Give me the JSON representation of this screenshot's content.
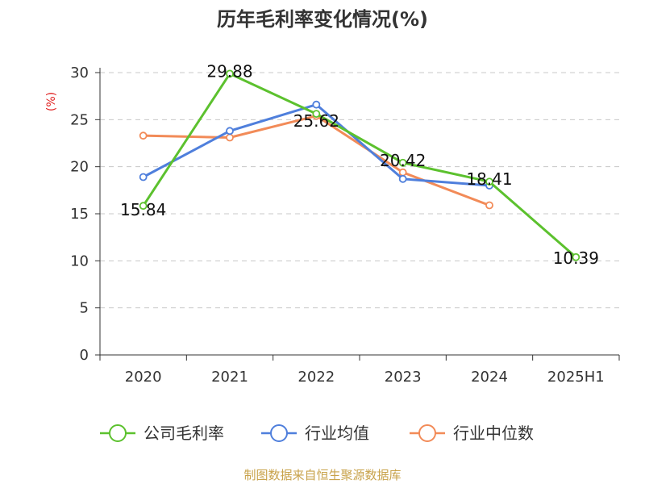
{
  "chart_data": {
    "type": "line",
    "title": "历年毛利率变化情况(%)",
    "ylabel": "(%)",
    "xlabel": "",
    "categories": [
      "2020",
      "2021",
      "2022",
      "2023",
      "2024",
      "2025H1"
    ],
    "ylim": [
      0,
      30
    ],
    "yticks": [
      0,
      5,
      10,
      15,
      20,
      25,
      30
    ],
    "grid": true,
    "legend_position": "bottom",
    "series": [
      {
        "name": "公司毛利率",
        "color": "#5cc12e",
        "values": [
          15.84,
          29.88,
          25.62,
          20.42,
          18.41,
          10.39
        ],
        "labels": [
          "15.84",
          "29.88",
          "25.62",
          "20.42",
          "18.41",
          "10.39"
        ]
      },
      {
        "name": "行业均值",
        "color": "#4f7fdc",
        "values": [
          18.9,
          23.8,
          26.6,
          18.7,
          18.0,
          null
        ]
      },
      {
        "name": "行业中位数",
        "color": "#f28b58",
        "values": [
          23.3,
          23.1,
          25.4,
          19.4,
          15.9,
          null
        ]
      }
    ]
  },
  "source": "制图数据来自恒生聚源数据库"
}
